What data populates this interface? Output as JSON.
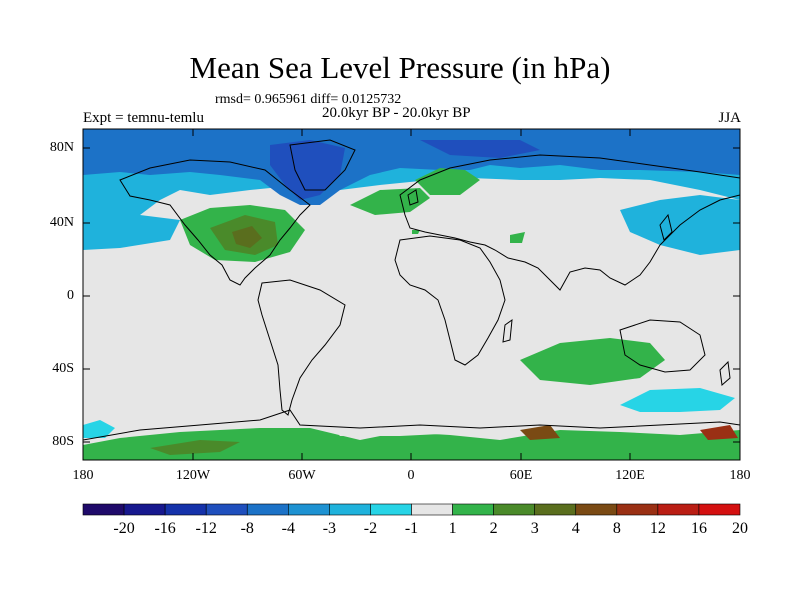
{
  "title": "Mean Sea Level Pressure (in hPa)",
  "stats_text": "rmsd= 0.965961 diff= 0.0125732",
  "experiment": "Expt = temnu-temlu",
  "period": "20.0kyr BP - 20.0kyr BP",
  "season": "JJA",
  "y_axis_labels": [
    "80N",
    "40N",
    "0",
    "40S",
    "80S"
  ],
  "x_axis_labels": [
    "180",
    "120W",
    "60W",
    "0",
    "60E",
    "120E",
    "180"
  ],
  "colorbar": {
    "labels": [
      "-20",
      "-16",
      "-12",
      "-8",
      "-4",
      "-3",
      "-2",
      "-1",
      "1",
      "2",
      "3",
      "4",
      "8",
      "12",
      "16",
      "20"
    ],
    "colors": [
      "#1f0a6a",
      "#17188e",
      "#1532aa",
      "#1f4fbd",
      "#1c72c7",
      "#1e92d2",
      "#1fb2dc",
      "#27d4e6",
      "#e6e6e6",
      "#33b34a",
      "#4a8a2a",
      "#5a6e1e",
      "#7a4a14",
      "#9a3014",
      "#ba1e14",
      "#d41010"
    ]
  }
}
